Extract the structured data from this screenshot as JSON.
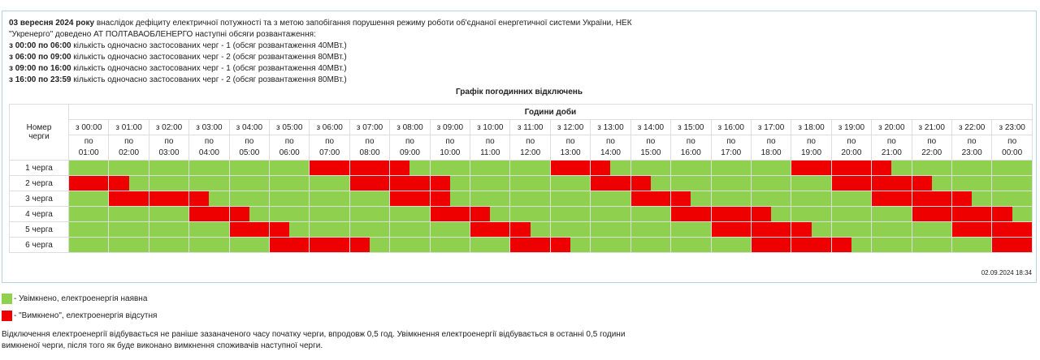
{
  "notice": {
    "date": "03 вересня 2024 року",
    "text": "внаслідок дефіциту електричної потужності та з метою запобігання порушення режиму роботи об'єднаної енергетичної системи України, НЕК \"Укренерго\" доведено АТ ПОЛТАВАОБЛЕНЕРГО наступні обсяги розвантаження:",
    "periods": [
      {
        "period": "з 00:00 по 06:00",
        "text": "кількість одночасно застосованих черг - 1 (обсяг розвантаження 40МВт.)"
      },
      {
        "period": "з 06:00 по 09:00",
        "text": "кількість одночасно застосованих черг - 2 (обсяг розвантаження 80МВт.)"
      },
      {
        "period": "з 09:00 по 16:00",
        "text": "кількість одночасно застосованих черг - 1 (обсяг розвантаження 40МВт.)"
      },
      {
        "period": "з 16:00 по 23:59",
        "text": "кількість одночасно застосованих черг - 2 (обсяг розвантаження 80МВт.)"
      }
    ]
  },
  "table": {
    "title": "Графік погодинних відключень",
    "queue_header": "Номер черги",
    "hours_header": "Години доби",
    "hours": [
      {
        "from": "з 00:00",
        "to": "по 01:00"
      },
      {
        "from": "з 01:00",
        "to": "по 02:00"
      },
      {
        "from": "з 02:00",
        "to": "по 03:00"
      },
      {
        "from": "з 03:00",
        "to": "по 04:00"
      },
      {
        "from": "з 04:00",
        "to": "по 05:00"
      },
      {
        "from": "з 05:00",
        "to": "по 06:00"
      },
      {
        "from": "з 06:00",
        "to": "по 07:00"
      },
      {
        "from": "з 07:00",
        "to": "по 08:00"
      },
      {
        "from": "з 08:00",
        "to": "по 09:00"
      },
      {
        "from": "з 09:00",
        "to": "по 10:00"
      },
      {
        "from": "з 10:00",
        "to": "по 11:00"
      },
      {
        "from": "з 11:00",
        "to": "по 12:00"
      },
      {
        "from": "з 12:00",
        "to": "по 13:00"
      },
      {
        "from": "з 13:00",
        "to": "по 14:00"
      },
      {
        "from": "з 14:00",
        "to": "по 15:00"
      },
      {
        "from": "з 15:00",
        "to": "по 16:00"
      },
      {
        "from": "з 16:00",
        "to": "по 17:00"
      },
      {
        "from": "з 17:00",
        "to": "по 18:00"
      },
      {
        "from": "з 18:00",
        "to": "по 19:00"
      },
      {
        "from": "з 19:00",
        "to": "по 20:00"
      },
      {
        "from": "з 20:00",
        "to": "по 21:00"
      },
      {
        "from": "з 21:00",
        "to": "по 22:00"
      },
      {
        "from": "з 22:00",
        "to": "по 23:00"
      },
      {
        "from": "з 23:00",
        "to": "по 00:00"
      }
    ],
    "rows": [
      {
        "label": "1 черга",
        "slots": [
          0,
          0,
          0,
          0,
          0,
          0,
          0,
          0,
          0,
          0,
          0,
          0,
          1,
          1,
          1,
          1,
          1,
          0,
          0,
          0,
          0,
          0,
          0,
          0,
          1,
          1,
          1,
          0,
          0,
          0,
          0,
          0,
          0,
          0,
          0,
          0,
          1,
          1,
          1,
          1,
          1,
          0,
          0,
          0,
          0,
          0,
          0,
          0
        ]
      },
      {
        "label": "2 черга",
        "slots": [
          1,
          1,
          1,
          0,
          0,
          0,
          0,
          0,
          0,
          0,
          0,
          0,
          0,
          0,
          1,
          1,
          1,
          1,
          1,
          0,
          0,
          0,
          0,
          0,
          0,
          0,
          1,
          1,
          1,
          0,
          0,
          0,
          0,
          0,
          0,
          0,
          0,
          0,
          1,
          1,
          1,
          1,
          1,
          0,
          0,
          0,
          0,
          0
        ]
      },
      {
        "label": "3 черга",
        "slots": [
          0,
          0,
          1,
          1,
          1,
          1,
          1,
          0,
          0,
          0,
          0,
          0,
          0,
          0,
          0,
          0,
          1,
          1,
          1,
          0,
          0,
          0,
          0,
          0,
          0,
          0,
          0,
          0,
          1,
          1,
          1,
          0,
          0,
          0,
          0,
          0,
          0,
          0,
          0,
          0,
          1,
          1,
          1,
          1,
          1,
          0,
          0,
          0
        ]
      },
      {
        "label": "4 черга",
        "slots": [
          0,
          0,
          0,
          0,
          0,
          0,
          1,
          1,
          1,
          0,
          0,
          0,
          0,
          0,
          0,
          0,
          0,
          0,
          1,
          1,
          1,
          0,
          0,
          0,
          0,
          0,
          0,
          0,
          0,
          0,
          1,
          1,
          1,
          1,
          1,
          0,
          0,
          0,
          0,
          0,
          0,
          0,
          1,
          1,
          1,
          1,
          1,
          0
        ]
      },
      {
        "label": "5 черга",
        "slots": [
          0,
          0,
          0,
          0,
          0,
          0,
          0,
          0,
          1,
          1,
          1,
          0,
          0,
          0,
          0,
          0,
          0,
          0,
          0,
          0,
          1,
          1,
          1,
          0,
          0,
          0,
          0,
          0,
          0,
          0,
          0,
          0,
          1,
          1,
          1,
          1,
          1,
          0,
          0,
          0,
          0,
          0,
          0,
          0,
          1,
          1,
          1,
          1
        ]
      },
      {
        "label": "6 черга",
        "slots": [
          0,
          0,
          0,
          0,
          0,
          0,
          0,
          0,
          0,
          0,
          1,
          1,
          1,
          1,
          1,
          0,
          0,
          0,
          0,
          0,
          0,
          0,
          1,
          1,
          1,
          0,
          0,
          0,
          0,
          0,
          0,
          0,
          0,
          0,
          1,
          1,
          1,
          1,
          1,
          0,
          0,
          0,
          0,
          0,
          0,
          0,
          1,
          1
        ]
      }
    ],
    "timestamp": "02.09.2024 18:34"
  },
  "legend": [
    {
      "color": "#8fd14f",
      "text": "- Увімкнено, електроенергія наявна"
    },
    {
      "color": "#ee0000",
      "text": "- \"Вимкнено\", електроенергія відсутня"
    }
  ],
  "footer": "Відключення електроенергії відбувається не раніше зазаначеного часу початку черги, впродовж 0,5 год. Увімкнення електроенергії відбувається в останні 0,5 години вимкненої черги, після того як буде виконано вимкнення споживачів наступної черги."
}
